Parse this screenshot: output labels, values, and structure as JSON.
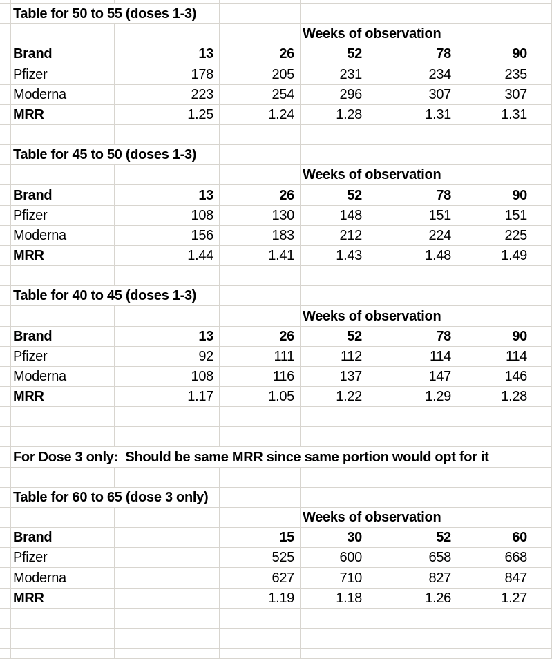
{
  "colors": {
    "gridline": "#d8d5cf",
    "background": "#ffffff",
    "text": "#000000"
  },
  "note": {
    "text": "For Dose 3 only:  Should be same MRR since same portion would opt for it"
  },
  "tables": [
    {
      "title": "Table for 50 to 55 (doses 1-3)",
      "weeks_header": "Weeks of observation",
      "header": [
        "Brand",
        "13",
        "26",
        "52",
        "78",
        "90"
      ],
      "rows": [
        {
          "bold_label": false,
          "cells": [
            "Pfizer",
            "178",
            "205",
            "231",
            "234",
            "235"
          ]
        },
        {
          "bold_label": false,
          "cells": [
            "Moderna",
            "223",
            "254",
            "296",
            "307",
            "307"
          ]
        },
        {
          "bold_label": true,
          "cells": [
            "MRR",
            "1.25",
            "1.24",
            "1.28",
            "1.31",
            "1.31"
          ]
        }
      ]
    },
    {
      "title": "Table for 45 to 50 (doses 1-3)",
      "weeks_header": "Weeks of observation",
      "header": [
        "Brand",
        "13",
        "26",
        "52",
        "78",
        "90"
      ],
      "rows": [
        {
          "bold_label": false,
          "cells": [
            "Pfizer",
            "108",
            "130",
            "148",
            "151",
            "151"
          ]
        },
        {
          "bold_label": false,
          "cells": [
            "Moderna",
            "156",
            "183",
            "212",
            "224",
            "225"
          ]
        },
        {
          "bold_label": true,
          "cells": [
            "MRR",
            "1.44",
            "1.41",
            "1.43",
            "1.48",
            "1.49"
          ]
        }
      ]
    },
    {
      "title": "Table for 40 to 45 (doses 1-3)",
      "weeks_header": "Weeks of observation",
      "header": [
        "Brand",
        "13",
        "26",
        "52",
        "78",
        "90"
      ],
      "rows": [
        {
          "bold_label": false,
          "cells": [
            "Pfizer",
            "92",
            "111",
            "112",
            "114",
            "114"
          ]
        },
        {
          "bold_label": false,
          "cells": [
            "Moderna",
            "108",
            "116",
            "137",
            "147",
            "146"
          ]
        },
        {
          "bold_label": true,
          "cells": [
            "MRR",
            "1.17",
            "1.05",
            "1.22",
            "1.29",
            "1.28"
          ]
        }
      ]
    },
    {
      "title": "Table for 60 to 65 (dose 3 only)",
      "weeks_header": "Weeks of observation",
      "header": [
        "Brand",
        "",
        "15",
        "30",
        "52",
        "60"
      ],
      "rows": [
        {
          "bold_label": false,
          "cells": [
            "Pfizer",
            "",
            "525",
            "600",
            "658",
            "668"
          ]
        },
        {
          "bold_label": false,
          "cells": [
            "Moderna",
            "",
            "627",
            "710",
            "827",
            "847"
          ]
        },
        {
          "bold_label": true,
          "cells": [
            "MRR",
            "",
            "1.19",
            "1.18",
            "1.26",
            "1.27"
          ]
        }
      ]
    }
  ]
}
